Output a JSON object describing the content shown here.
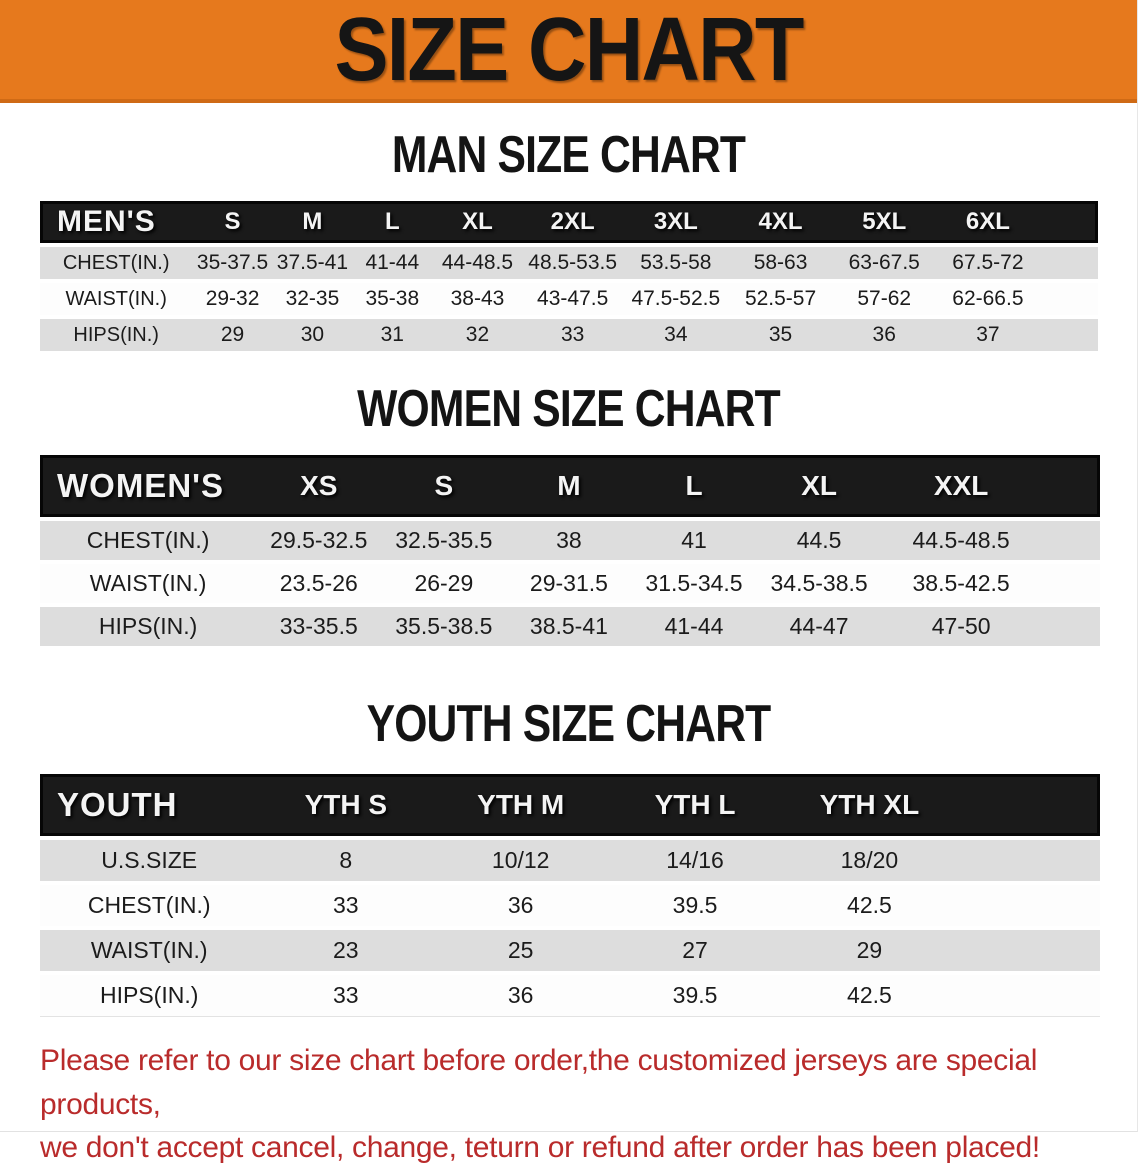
{
  "banner": {
    "title": "SIZE CHART",
    "bg_color": "#E6791D",
    "text_color": "#151515"
  },
  "sections": [
    {
      "title": "MAN SIZE CHART",
      "header_label": "MEN'S",
      "sizes": [
        "S",
        "M",
        "L",
        "XL",
        "2XL",
        "3XL",
        "4XL",
        "5XL",
        "6XL"
      ],
      "rows": [
        {
          "label": "CHEST(IN.)",
          "values": [
            "35-37.5",
            "37.5-41",
            "41-44",
            "44-48.5",
            "48.5-53.5",
            "53.5-58",
            "58-63",
            "63-67.5",
            "67.5-72"
          ]
        },
        {
          "label": "WAIST(IN.)",
          "values": [
            "29-32",
            "32-35",
            "35-38",
            "38-43",
            "43-47.5",
            "47.5-52.5",
            "52.5-57",
            "57-62",
            "62-66.5"
          ]
        },
        {
          "label": "HIPS(IN.)",
          "values": [
            "29",
            "30",
            "31",
            "32",
            "33",
            "34",
            "35",
            "36",
            "37"
          ]
        }
      ]
    },
    {
      "title": "WOMEN SIZE CHART",
      "header_label": "WOMEN'S",
      "sizes": [
        "XS",
        "S",
        "M",
        "L",
        "XL",
        "XXL"
      ],
      "rows": [
        {
          "label": "CHEST(IN.)",
          "values": [
            "29.5-32.5",
            "32.5-35.5",
            "38",
            "41",
            "44.5",
            "44.5-48.5"
          ]
        },
        {
          "label": "WAIST(IN.)",
          "values": [
            "23.5-26",
            "26-29",
            "29-31.5",
            "31.5-34.5",
            "34.5-38.5",
            "38.5-42.5"
          ]
        },
        {
          "label": "HIPS(IN.)",
          "values": [
            "33-35.5",
            "35.5-38.5",
            "38.5-41",
            "41-44",
            "44-47",
            "47-50"
          ]
        }
      ]
    },
    {
      "title": "YOUTH SIZE CHART",
      "header_label": "YOUTH",
      "sizes": [
        "YTH S",
        "YTH M",
        "YTH L",
        "YTH XL"
      ],
      "rows": [
        {
          "label": "U.S.SIZE",
          "values": [
            "8",
            "10/12",
            "14/16",
            "18/20"
          ]
        },
        {
          "label": "CHEST(IN.)",
          "values": [
            "33",
            "36",
            "39.5",
            "42.5"
          ]
        },
        {
          "label": "WAIST(IN.)",
          "values": [
            "23",
            "25",
            "27",
            "29"
          ]
        },
        {
          "label": "HIPS(IN.)",
          "values": [
            "33",
            "36",
            "39.5",
            "42.5"
          ]
        }
      ]
    }
  ],
  "disclaimer": {
    "line1": "Please refer to our size chart before order,the customized jerseys are special products,",
    "line2": "we don't accept cancel, change, teturn or refund after order has been placed!",
    "color": "#B92B2B"
  },
  "colors": {
    "header_bar": "#1A1A1A",
    "row_shade": "#DDDDDD",
    "row_plain": "#FDFDFD",
    "table_text": "#1B1B1B"
  }
}
